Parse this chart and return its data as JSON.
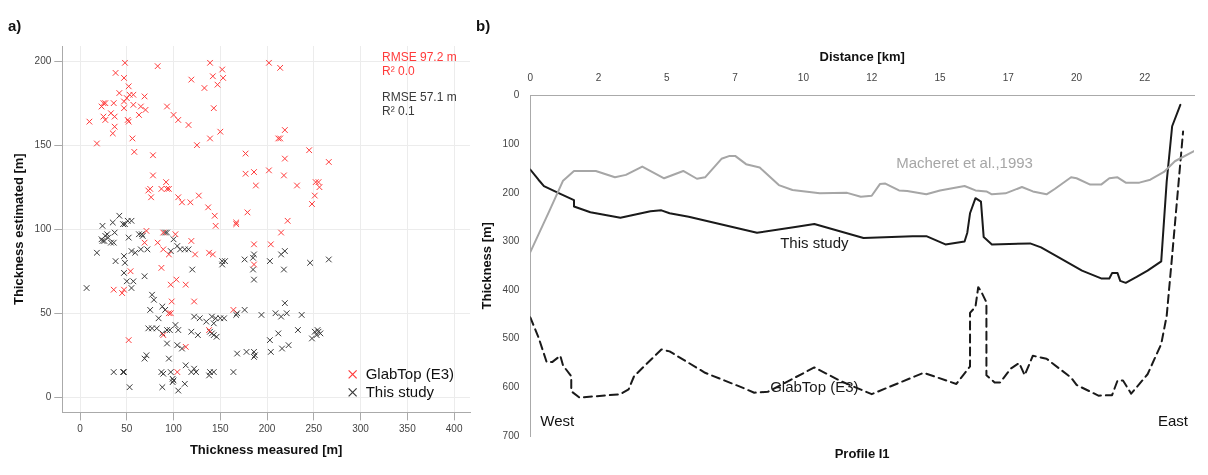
{
  "chart_data": [
    {
      "type": "scatter",
      "title": "a)",
      "xlabel": "Thickness measured [m]",
      "ylabel": "Thickness estimated [m]",
      "xlim": [
        -19,
        417
      ],
      "xticks": [
        0,
        50,
        100,
        150,
        200,
        250,
        300,
        350,
        400
      ],
      "ylim": [
        -9,
        209
      ],
      "yticks": [
        0,
        50,
        100,
        150,
        200
      ],
      "grid": true,
      "legend": "bottom right",
      "marker": "cross",
      "annotations": [
        "RMSE 97.2 m",
        "R² 0.0",
        "RMSE 57.1 m",
        "R² 0.1"
      ],
      "series": [
        {
          "name": "GlabTop (E3)",
          "color": "#ff3b3b",
          "x": [
            10,
            18,
            25,
            23,
            27,
            25,
            27,
            33,
            36,
            38,
            37,
            35,
            37,
            42,
            48,
            47,
            47,
            47,
            50,
            52,
            51,
            52,
            53,
            57,
            57,
            56,
            58,
            63,
            65,
            69,
            70,
            83,
            78,
            78,
            73,
            75,
            76,
            87,
            92,
            93,
            95,
            93,
            100,
            105,
            116,
            119,
            125,
            105,
            109,
            118,
            127,
            133,
            137,
            144,
            145,
            167,
            139,
            142,
            143,
            139,
            147,
            150,
            152,
            153,
            202,
            214,
            219,
            212,
            214,
            245,
            177,
            219,
            266,
            177,
            186,
            202,
            218,
            188,
            232,
            252,
            255,
            256,
            251,
            248,
            179,
            167,
            222,
            215,
            71,
            89,
            102,
            69,
            83,
            89,
            95,
            119,
            123,
            138,
            142,
            87,
            54,
            36,
            45,
            47,
            97,
            103,
            113,
            98,
            122,
            97,
            95,
            89,
            138,
            52,
            113,
            104,
            164,
            186,
            204,
            186
          ],
          "values": [
            164,
            151,
            175,
            173,
            175,
            167,
            165,
            169,
            175,
            193,
            167,
            157,
            161,
            181,
            199,
            190,
            176,
            172,
            178,
            185,
            165,
            164,
            180,
            180,
            174,
            154,
            146,
            168,
            173,
            179,
            171,
            197,
            144,
            132,
            123,
            124,
            119,
            124,
            128,
            124,
            124,
            173,
            168,
            165,
            162,
            189,
            150,
            119,
            116,
            116,
            120,
            184,
            113,
            108,
            102,
            103,
            199,
            191,
            172,
            154,
            186,
            158,
            195,
            190,
            199,
            196,
            159,
            154,
            154,
            147,
            145,
            142,
            140,
            133,
            134,
            135,
            132,
            126,
            126,
            128,
            128,
            125,
            120,
            115,
            110,
            104,
            105,
            98,
            99,
            98,
            97,
            92,
            92,
            88,
            85,
            93,
            85,
            86,
            85,
            77,
            75,
            64,
            62,
            64,
            67,
            70,
            67,
            57,
            57,
            50,
            50,
            37,
            40,
            34,
            30,
            15,
            52,
            91,
            91,
            79
          ]
        },
        {
          "name": "This study",
          "color": "#3a3a3a",
          "x": [
            7,
            18,
            24,
            23,
            26,
            24,
            27,
            29,
            33,
            30,
            36,
            37,
            35,
            42,
            46,
            48,
            51,
            55,
            38,
            47,
            48,
            52,
            47,
            50,
            57,
            55,
            55,
            59,
            63,
            66,
            67,
            65,
            72,
            69,
            77,
            79,
            75,
            84,
            88,
            91,
            73,
            77,
            82,
            88,
            93,
            96,
            102,
            105,
            93,
            104,
            109,
            95,
            69,
            71,
            36,
            47,
            46,
            53,
            87,
            89,
            97,
            99,
            99,
            100,
            88,
            105,
            112,
            113,
            119,
            122,
            124,
            122,
            128,
            120,
            119,
            126,
            135,
            141,
            145,
            143,
            139,
            141,
            143,
            146,
            139,
            143,
            138,
            150,
            154,
            100,
            104,
            97,
            107,
            112,
            116,
            93,
            91,
            152,
            155,
            152,
            168,
            168,
            164,
            176,
            185,
            186,
            185,
            186,
            203,
            215,
            219,
            218,
            246,
            266,
            219,
            176,
            167,
            194,
            209,
            215,
            221,
            237,
            212,
            203,
            204,
            216,
            223,
            233,
            248,
            251,
            254,
            255,
            257,
            253,
            178,
            186,
            187,
            186
          ],
          "values": [
            65,
            86,
            102,
            94,
            93,
            93,
            96,
            97,
            92,
            95,
            92,
            98,
            104,
            108,
            103,
            103,
            105,
            105,
            81,
            84,
            80,
            95,
            74,
            69,
            69,
            65,
            87,
            86,
            97,
            97,
            96,
            88,
            88,
            72,
            61,
            58,
            52,
            47,
            54,
            52,
            41,
            41,
            41,
            38,
            40,
            40,
            43,
            40,
            32,
            31,
            29,
            23,
            23,
            25,
            15,
            15,
            15,
            6,
            15,
            14,
            15,
            11,
            9,
            10,
            6,
            4,
            8,
            19,
            15,
            17,
            15,
            48,
            47,
            76,
            39,
            37,
            45,
            48,
            47,
            44,
            39,
            38,
            37,
            36,
            15,
            15,
            13,
            47,
            47,
            94,
            90,
            87,
            88,
            88,
            88,
            98,
            98,
            81,
            81,
            79,
            50,
            26,
            15,
            82,
            83,
            85,
            76,
            70,
            81,
            85,
            87,
            76,
            80,
            82,
            56,
            52,
            49,
            49,
            50,
            48,
            50,
            49,
            38,
            34,
            27,
            29,
            31,
            40,
            35,
            39,
            40,
            39,
            38,
            37,
            27,
            27,
            25,
            24
          ]
        }
      ]
    },
    {
      "type": "line",
      "title": "b)",
      "xlabel": "Distance [km]",
      "ylabel": "Thickness [m]",
      "xlim": [
        0,
        24.3
      ],
      "xticks": [
        0,
        {
          "value": 2.5,
          "label": "2"
        },
        5,
        {
          "value": 7.5,
          "label": "7"
        },
        10,
        {
          "value": 12.5,
          "label": "12"
        },
        15,
        {
          "value": 17.5,
          "label": "17"
        },
        20,
        {
          "value": 22.5,
          "label": "22"
        }
      ],
      "ylim": [
        700,
        0
      ],
      "yticks": [
        0,
        100,
        200,
        300,
        400,
        500,
        600,
        700
      ],
      "legend": false,
      "annotations": [
        "Profile I1",
        "West",
        "East"
      ],
      "series": [
        {
          "name": "Macheret et al.,1993",
          "color": "#a6a6a6",
          "line_style": "solid",
          "x": [
            0,
            0.7,
            1.2,
            1.6,
            2.4,
            3.1,
            3.5,
            4.1,
            4.9,
            5.6,
            6.1,
            6.4,
            7.0,
            7.3,
            7.5,
            7.9,
            8.4,
            9.1,
            9.6,
            10.6,
            11.6,
            12.1,
            12.5,
            12.8,
            13.0,
            13.5,
            13.8,
            14.5,
            15.0,
            15.9,
            16.3,
            16.7,
            16.9,
            17.4,
            18.0,
            18.4,
            18.9,
            19.2,
            19.8,
            20.0,
            20.5,
            20.9,
            21.2,
            21.5,
            21.8,
            22.3,
            22.7,
            23.2,
            23.6,
            24.3
          ],
          "values": [
            322,
            237,
            175,
            155,
            155,
            168,
            163,
            146,
            170,
            155,
            171,
            168,
            130,
            124,
            124,
            141,
            148,
            184,
            194,
            201,
            200,
            208,
            206,
            182,
            181,
            195,
            196,
            203,
            195,
            186,
            195,
            197,
            203,
            201,
            188,
            197,
            203,
            192,
            168,
            170,
            183,
            183,
            170,
            168,
            179,
            179,
            173,
            157,
            135,
            114
          ]
        },
        {
          "name": "This study",
          "color": "#1a1a1a",
          "line_style": "solid",
          "x": [
            0,
            0.3,
            0.5,
            1.1,
            1.6,
            1.6,
            2.2,
            3.3,
            4.4,
            4.8,
            5.1,
            5.8,
            8.3,
            9.7,
            10.4,
            12.2,
            14.0,
            14.5,
            15.2,
            15.9,
            16.0,
            16.1,
            16.3,
            16.5,
            16.6,
            16.9,
            18.3,
            18.7,
            20.2,
            20.9,
            21.2,
            21.3,
            21.5,
            21.6,
            21.8,
            22.2,
            22.6,
            23.1,
            23.3,
            23.5,
            23.8
          ],
          "values": [
            152,
            173,
            186,
            202,
            215,
            228,
            240,
            251,
            238,
            236,
            242,
            249,
            282,
            270,
            264,
            293,
            289,
            289,
            306,
            300,
            282,
            242,
            211,
            218,
            291,
            306,
            304,
            312,
            360,
            376,
            376,
            365,
            365,
            381,
            385,
            373,
            360,
            341,
            177,
            63,
            19
          ]
        },
        {
          "name": "GlabTop (E3)",
          "color": "#1a1a1a",
          "line_style": "dashed",
          "x": [
            0,
            0.3,
            0.6,
            0.8,
            1.1,
            1.2,
            1.5,
            1.5,
            1.8,
            3.3,
            3.6,
            3.8,
            4.8,
            5.1,
            6.4,
            7.7,
            8.2,
            8.7,
            10.4,
            11.4,
            12.5,
            14.4,
            15.6,
            16.1,
            16.1,
            16.3,
            16.4,
            16.5,
            16.7,
            16.7,
            17.0,
            17.2,
            17.6,
            17.9,
            18.1,
            18.4,
            18.9,
            19.8,
            20.0,
            20.8,
            21.3,
            21.5,
            21.7,
            22.0,
            22.6,
            23.1,
            23.3,
            23.5,
            23.9
          ],
          "values": [
            456,
            497,
            548,
            548,
            535,
            555,
            577,
            608,
            621,
            614,
            604,
            577,
            522,
            526,
            570,
            599,
            611,
            609,
            559,
            588,
            614,
            570,
            593,
            557,
            447,
            434,
            394,
            402,
            425,
            575,
            590,
            590,
            561,
            550,
            575,
            535,
            541,
            580,
            595,
            617,
            616,
            586,
            586,
            613,
            573,
            511,
            453,
            329,
            74
          ]
        }
      ]
    }
  ]
}
